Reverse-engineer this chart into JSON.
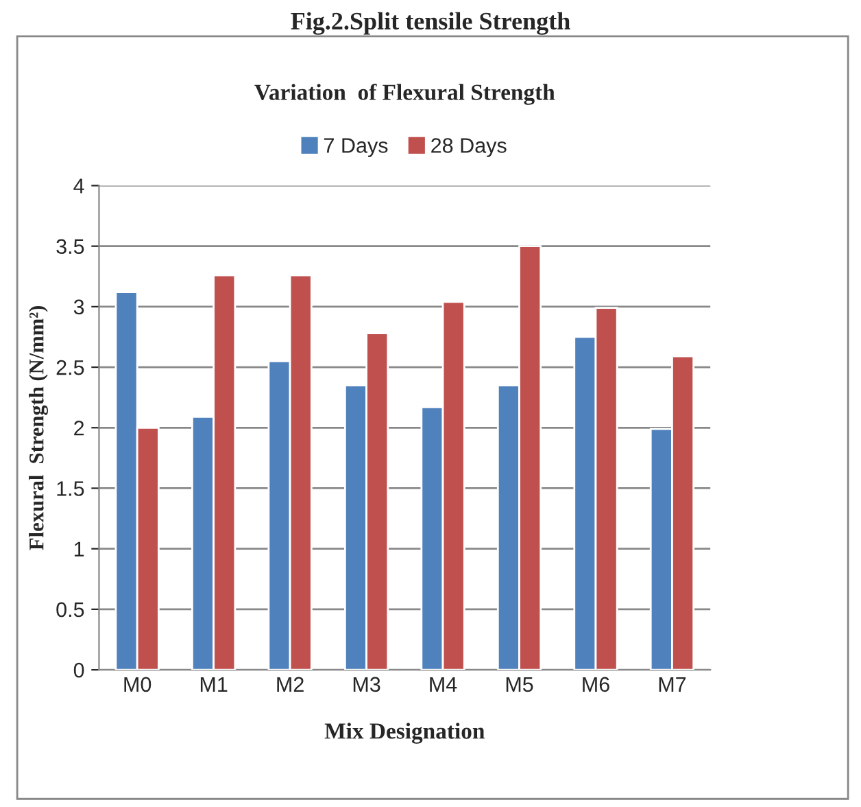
{
  "chart_data": {
    "type": "bar",
    "title": "Variation  of Flexural Strength",
    "annotations": [
      "Fig.2.Split tensile Strength"
    ],
    "xlabel": "Mix Designation",
    "ylabel": "Flexural  Strength (N/mm²)",
    "categories": [
      "M0",
      "M1",
      "M2",
      "M3",
      "M4",
      "M5",
      "M6",
      "M7"
    ],
    "series": [
      {
        "name": "7 Days",
        "color": "#4f81bd",
        "values": [
          3.12,
          2.09,
          2.55,
          2.35,
          2.17,
          2.35,
          2.75,
          1.99
        ]
      },
      {
        "name": "28 Days",
        "color": "#c0504d",
        "values": [
          2.0,
          3.26,
          3.26,
          2.78,
          3.04,
          3.5,
          2.99,
          2.59
        ]
      }
    ],
    "ylim": [
      0,
      4
    ],
    "yticks": [
      0,
      0.5,
      1,
      1.5,
      2,
      2.5,
      3,
      3.5,
      4
    ],
    "grid": "y",
    "legend": "top"
  }
}
